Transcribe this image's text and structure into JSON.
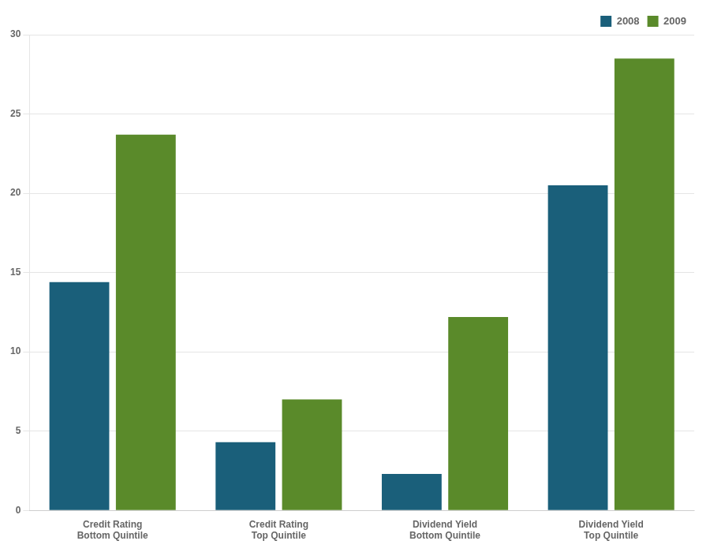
{
  "chart_data": {
    "type": "bar",
    "categories": [
      "Credit Rating\nBottom Quintile",
      "Credit Rating\nTop Quintile",
      "Dividend Yield\nBottom Quintile",
      "Dividend Yield\nTop Quintile"
    ],
    "series": [
      {
        "name": "2008",
        "color": "#1a5f7a",
        "values": [
          14.4,
          4.3,
          2.3,
          20.5
        ]
      },
      {
        "name": "2009",
        "color": "#5a8a2a",
        "values": [
          23.7,
          7.0,
          12.2,
          28.5
        ]
      }
    ],
    "ylim": [
      0,
      30
    ],
    "yticks": [
      0,
      5,
      10,
      15,
      20,
      25,
      30
    ],
    "grid": true,
    "legend": "upper right"
  }
}
